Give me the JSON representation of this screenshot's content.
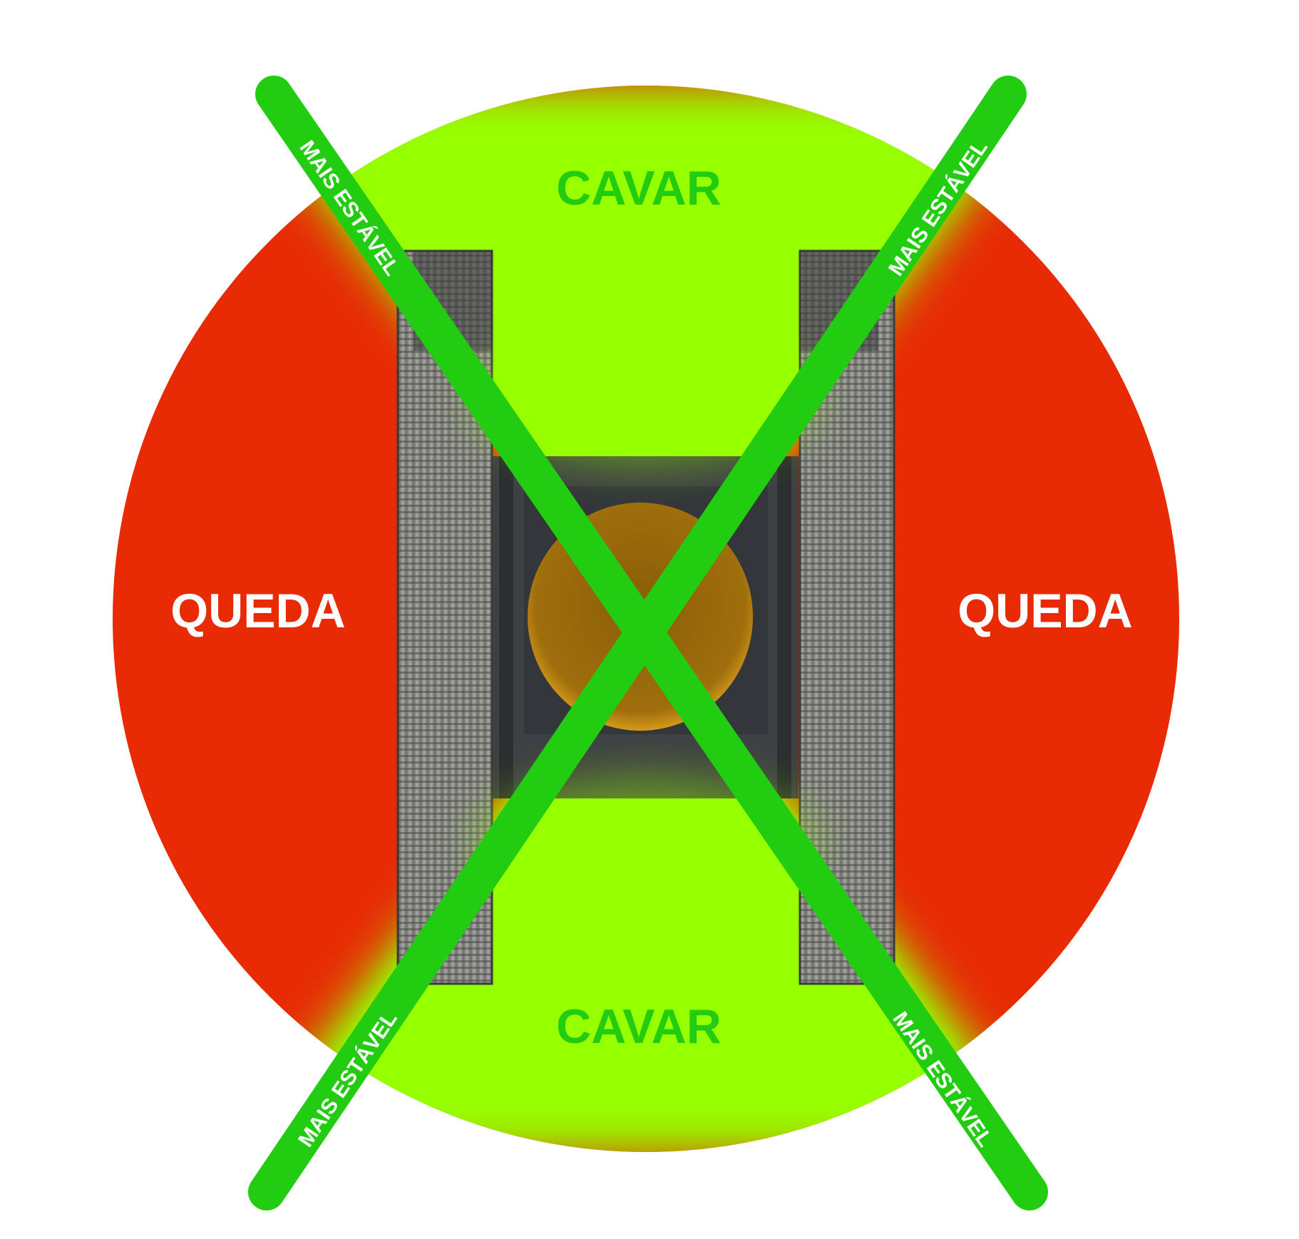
{
  "labels": {
    "top": "CAVAR",
    "bottom": "CAVAR",
    "left": "QUEDA",
    "right": "QUEDA",
    "band_top_left": "MAIS ESTÁVEL",
    "band_top_right": "MAIS ESTÁVEL",
    "band_bottom_left": "MAIS ESTÁVEL",
    "band_bottom_right": "MAIS ESTÁVEL"
  },
  "colors": {
    "fall_zone": "#e82a05",
    "dig_zone": "#96ff00",
    "stable_band": "#22cc11",
    "dig_text": "#22cc11",
    "fall_text": "#ffffff",
    "band_text": "#ffffff",
    "track": "#8a8a88",
    "body": "#3e4144",
    "seat": "#b07a10"
  },
  "icons": {
    "machine": "excavator-top-view-icon",
    "left_track": "crawler-track-icon",
    "right_track": "crawler-track-icon"
  }
}
